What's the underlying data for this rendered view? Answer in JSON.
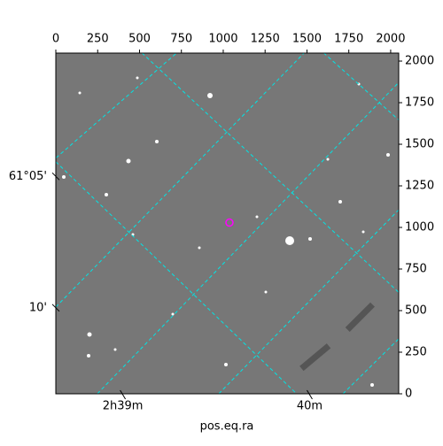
{
  "chart_data": {
    "type": "image",
    "xlabel": "pos.eq.ra",
    "xlim": [
      0,
      2048
    ],
    "ylim": [
      0,
      2048
    ],
    "xticks": [
      0,
      250,
      500,
      750,
      1000,
      1250,
      1500,
      1750,
      2000
    ],
    "yticks": [
      0,
      250,
      500,
      750,
      1000,
      1250,
      1500,
      1750,
      2000
    ],
    "ra_ticks": [
      {
        "value": 400,
        "label": "2h39m"
      },
      {
        "value": 1516,
        "label": "40m"
      }
    ],
    "dec_ticks": [
      {
        "value": 1307,
        "label": "61°05'"
      },
      {
        "value": 517,
        "label": "10'"
      }
    ],
    "marker": {
      "x": 1037,
      "y": 1029,
      "color": "#ff00ff"
    },
    "grid_color": "#00e5e5"
  }
}
